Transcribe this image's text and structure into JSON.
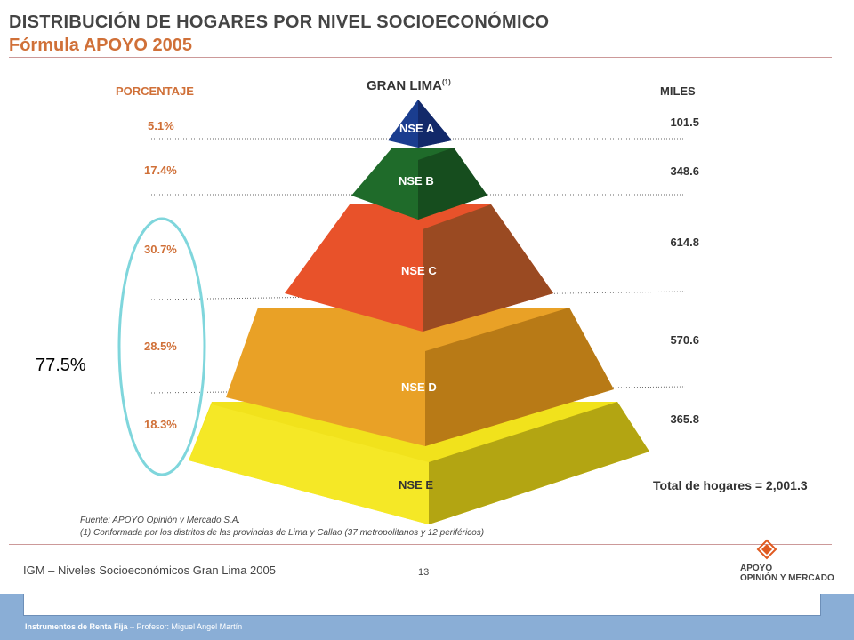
{
  "header": {
    "title": "DISTRIBUCIÓN DE HOGARES POR NIVEL SOCIOECONÓMICO",
    "subtitle": "Fórmula APOYO 2005"
  },
  "diagram": {
    "pyramid_title": "GRAN LIMA",
    "pyramid_title_note": "(1)",
    "left_header": "PORCENTAJE",
    "right_header": "MILES",
    "levels": [
      {
        "label": "NSE A",
        "percent": "5.1%",
        "miles": "101.5",
        "color": "#1a3d8f"
      },
      {
        "label": "NSE B",
        "percent": "17.4%",
        "miles": "348.6",
        "color": "#1f6b2a"
      },
      {
        "label": "NSE C",
        "percent": "30.7%",
        "miles": "614.8",
        "color": "#e8522a"
      },
      {
        "label": "NSE D",
        "percent": "28.5%",
        "miles": "570.6",
        "color": "#e9a126"
      },
      {
        "label": "NSE E",
        "percent": "18.3%",
        "miles": "365.8",
        "color": "#f1e21c"
      }
    ],
    "total": "Total de hogares = 2,001.3",
    "callout": "77.5%",
    "callout_color": "#7fd6dc"
  },
  "sources": {
    "line1": "Fuente: APOYO Opinión y Mercado S.A.",
    "line2": "(1) Conformada por los distritos de las provincias de Lima y Callao (37 metropolitanos y 12 periféricos)"
  },
  "footer": {
    "left": "IGM – Niveles Socioeconómicos Gran Lima 2005",
    "page": "13",
    "logo_line1": "APOYO",
    "logo_line2": "OPINIÓN Y MERCADO",
    "logo_color": "#e05a20",
    "bar_text_bold": "Instrumentos de Renta Fija",
    "bar_text_rest": " – Profesor: Miguel Angel Martín"
  }
}
